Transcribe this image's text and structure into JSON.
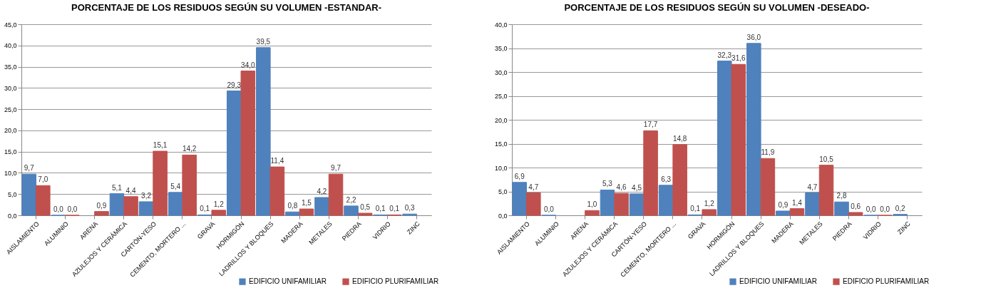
{
  "chart_data": [
    {
      "type": "bar",
      "title": "PORCENTAJE DE LOS RESIDUOS SEGÚN SU VOLUMEN -ESTANDAR-",
      "categories": [
        "AISLAMIENTO",
        "ALUMINIO",
        "ARENA",
        "AZULEJOS Y CERÁMICA",
        "CARTÓN-YESO",
        "CEMENTO, MORTERO ...",
        "GRAVA",
        "HORMIGÓN",
        "LADRILLOS Y BLOQUES",
        "MADERA",
        "METALES",
        "PIEDRA",
        "VIDRIO",
        "ZINC"
      ],
      "series": [
        {
          "name": "EDIFICIO UNIFAMILIAR",
          "color": "#4f81bd",
          "values": [
            9.7,
            0.0,
            null,
            5.1,
            3.2,
            5.4,
            0.1,
            29.3,
            39.5,
            0.8,
            4.2,
            2.2,
            0.1,
            0.3
          ],
          "value_labels": [
            "9,7",
            "0,0",
            null,
            "5,1",
            "3,2",
            "5,4",
            "0,1",
            "29,3",
            "39,5",
            "0,8",
            "4,2",
            "2,2",
            "0,1",
            "0,3"
          ]
        },
        {
          "name": "EDIFICIO PLURIFAMILIAR",
          "color": "#c0504d",
          "values": [
            7.0,
            0.0,
            0.9,
            4.4,
            15.1,
            14.2,
            1.2,
            34.0,
            11.4,
            1.5,
            9.7,
            0.5,
            0.1,
            null
          ],
          "value_labels": [
            "7,0",
            "0,0",
            "0,9",
            "4,4",
            "15,1",
            "14,2",
            "1,2",
            "34,0",
            "11,4",
            "1,5",
            "9,7",
            "0,5",
            "0,1",
            null
          ]
        }
      ],
      "ylim": [
        0,
        45
      ],
      "yticks": [
        {
          "value": 0,
          "label": "0,0"
        },
        {
          "value": 5,
          "label": "5,0"
        },
        {
          "value": 10,
          "label": "10,0"
        },
        {
          "value": 15,
          "label": "15,0"
        },
        {
          "value": 20,
          "label": "20,0"
        },
        {
          "value": 25,
          "label": "25,0"
        },
        {
          "value": 30,
          "label": "30,0"
        },
        {
          "value": 35,
          "label": "35,0"
        },
        {
          "value": 40,
          "label": "40,0"
        },
        {
          "value": 45,
          "label": "45,0"
        }
      ],
      "grid": "y",
      "legend": "bottom right"
    },
    {
      "type": "bar",
      "title": "PORCENTAJE DE LOS RESIDUOS SEGÚN SU VOLUMEN -DESEADO-",
      "categories": [
        "AISLAMIENTO",
        "ALUMINIO",
        "ARENA",
        "AZULEJOS Y CERÁMICA",
        "CARTÓN-YESO",
        "CEMENTO, MORTERO ...",
        "GRAVA",
        "HORMIGÓN",
        "LADRILLOS Y BLOQUES",
        "MADERA",
        "METALES",
        "PIEDRA",
        "VIDRIO",
        "ZINC"
      ],
      "series": [
        {
          "name": "EDIFICIO UNIFAMILIAR",
          "color": "#4f81bd",
          "values": [
            6.9,
            0.0,
            null,
            5.3,
            4.5,
            6.3,
            0.1,
            32.3,
            36.0,
            0.9,
            4.7,
            2.8,
            0.0,
            0.2
          ],
          "value_labels": [
            "6,9",
            "0,0",
            null,
            "5,3",
            "4,5",
            "6,3",
            "0,1",
            "32,3",
            "36,0",
            "0,9",
            "4,7",
            "2,8",
            "0,0",
            "0,2"
          ]
        },
        {
          "name": "EDIFICIO PLURIFAMILIAR",
          "color": "#c0504d",
          "values": [
            4.7,
            null,
            1.0,
            4.6,
            17.7,
            14.8,
            1.2,
            31.6,
            11.9,
            1.4,
            10.5,
            0.6,
            0.0,
            null
          ],
          "value_labels": [
            "4,7",
            null,
            "1,0",
            "4,6",
            "17,7",
            "14,8",
            "1,2",
            "31,6",
            "11,9",
            "1,4",
            "10,5",
            "0,6",
            "0,0",
            null
          ]
        }
      ],
      "ylim": [
        0,
        40
      ],
      "yticks": [
        {
          "value": 0,
          "label": "0,0"
        },
        {
          "value": 5,
          "label": "5,0"
        },
        {
          "value": 10,
          "label": "10,0"
        },
        {
          "value": 15,
          "label": "15,0"
        },
        {
          "value": 20,
          "label": "20,0"
        },
        {
          "value": 25,
          "label": "25,0"
        },
        {
          "value": 30,
          "label": "30,0"
        },
        {
          "value": 35,
          "label": "35,0"
        },
        {
          "value": 40,
          "label": "40,0"
        }
      ],
      "grid": "y",
      "legend": "bottom right"
    }
  ]
}
